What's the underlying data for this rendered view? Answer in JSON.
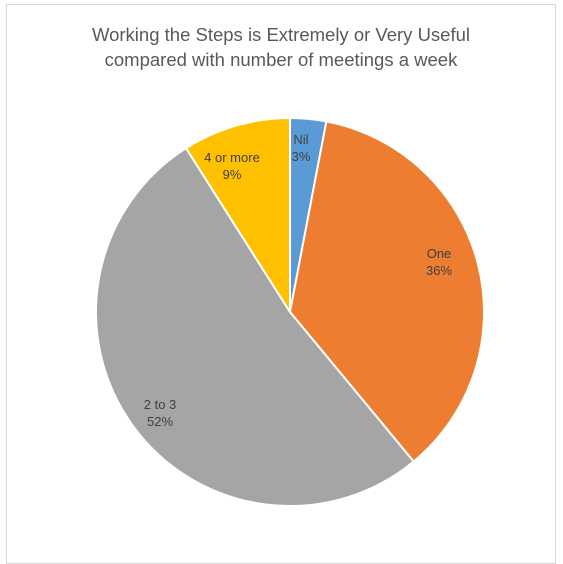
{
  "chart_data": {
    "type": "pie",
    "title_lines": [
      "Working the Steps is Extremely or Very Useful",
      "compared with number of meetings a week"
    ],
    "slices": [
      {
        "label": "Nil",
        "value": 3,
        "value_label": "3%",
        "color": "#5b9bd5"
      },
      {
        "label": "One",
        "value": 36,
        "value_label": "36%",
        "color": "#ed7d31"
      },
      {
        "label": "2 to 3",
        "value": 52,
        "value_label": "52%",
        "color": "#a5a5a5"
      },
      {
        "label": "4 or more",
        "value": 9,
        "value_label": "9%",
        "color": "#ffc000"
      }
    ],
    "legend": "none",
    "data_labels": "inside"
  }
}
